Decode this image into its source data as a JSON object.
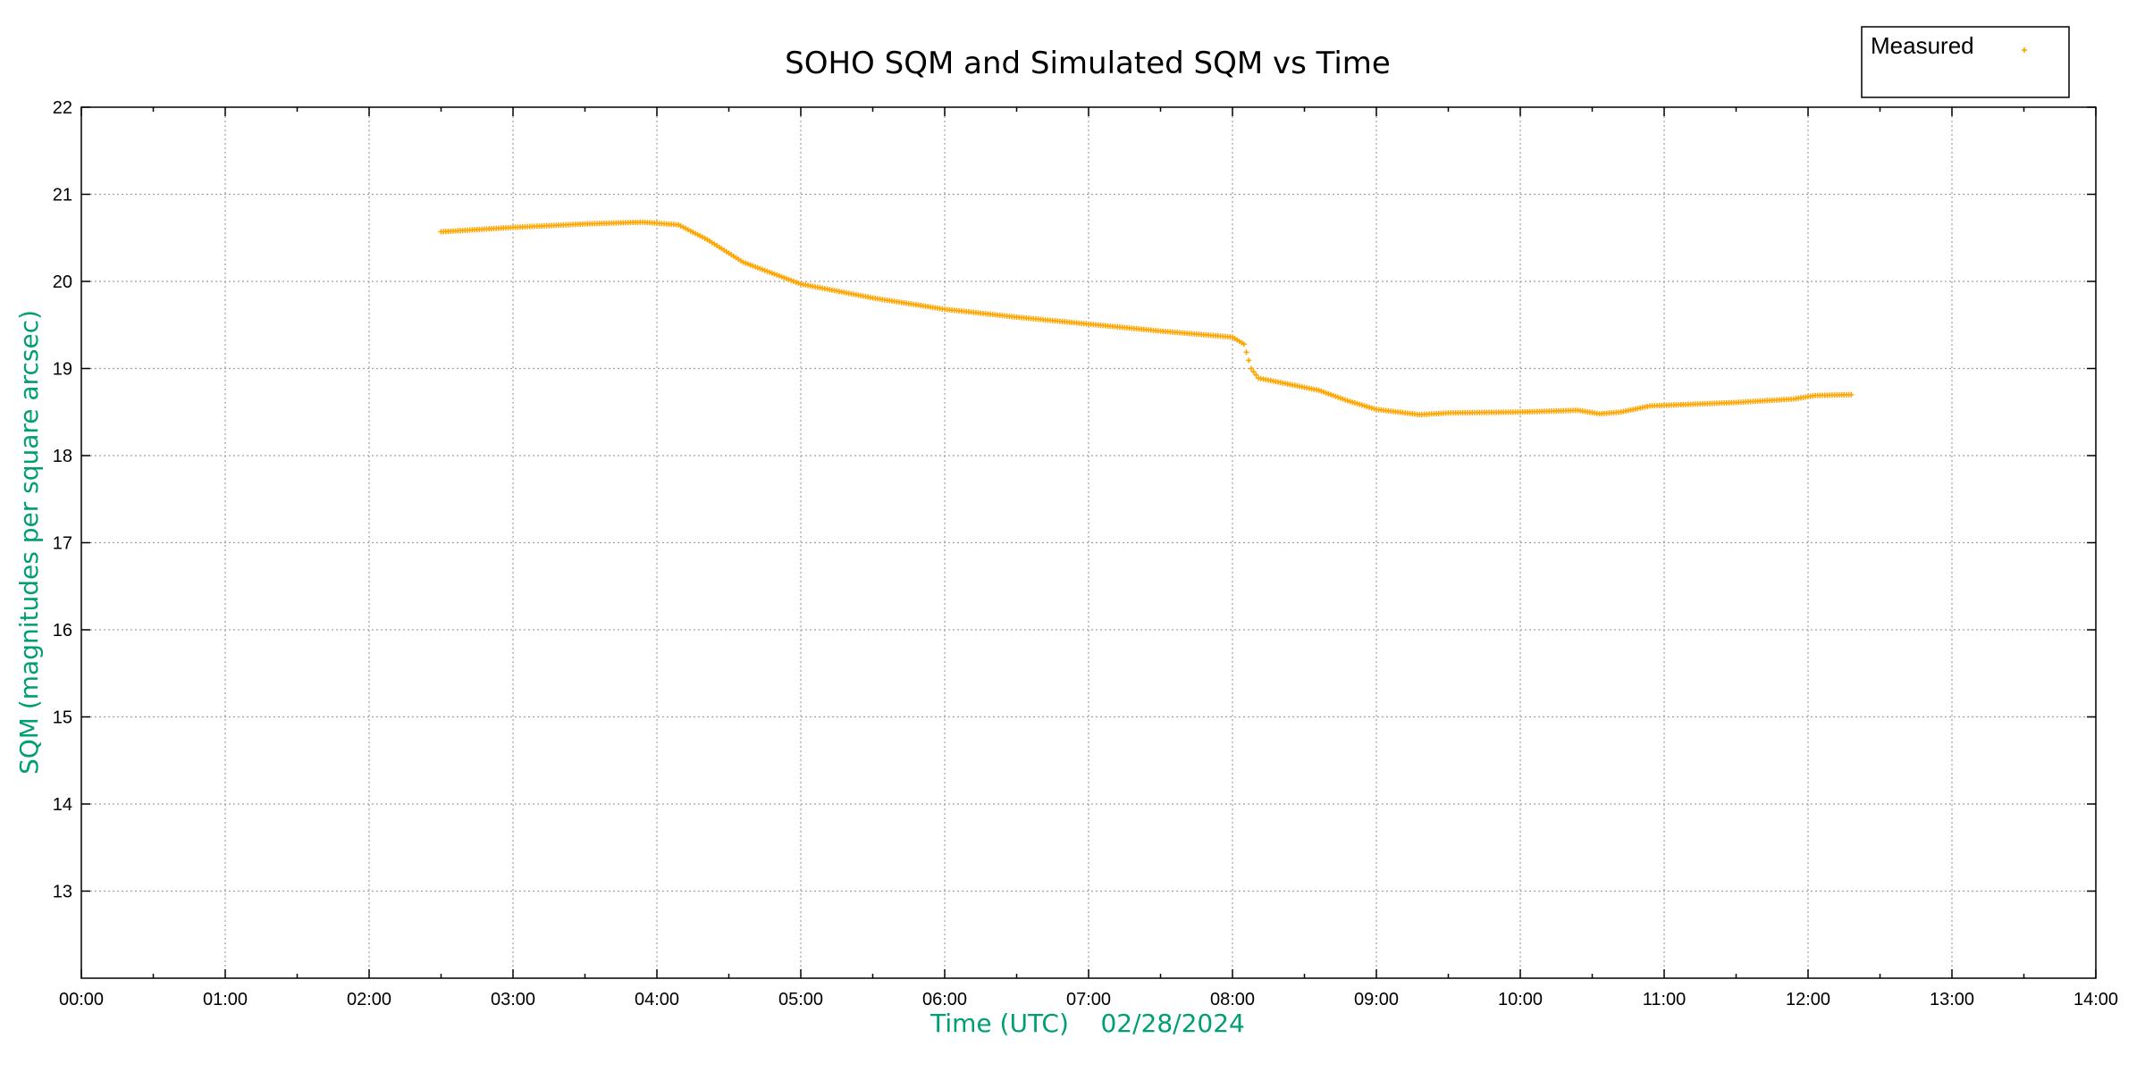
{
  "chart_data": {
    "type": "scatter",
    "title": "SOHO SQM and Simulated SQM vs Time",
    "xlabel": "Time (UTC)    02/28/2024",
    "ylabel": "SQM (magnitudes per square arcsec)",
    "xlim": [
      0,
      14
    ],
    "ylim": [
      12,
      22
    ],
    "x_ticks": [
      "00:00",
      "01:00",
      "02:00",
      "03:00",
      "04:00",
      "05:00",
      "06:00",
      "07:00",
      "08:00",
      "09:00",
      "10:00",
      "11:00",
      "12:00",
      "13:00",
      "14:00"
    ],
    "y_ticks": [
      "13",
      "14",
      "15",
      "16",
      "17",
      "18",
      "19",
      "20",
      "21",
      "22"
    ],
    "grid": true,
    "legend": {
      "placement": "top-right, outside plot",
      "entries": [
        {
          "label": "Measured",
          "color": "#ffa500",
          "marker": "+"
        }
      ]
    },
    "series": [
      {
        "name": "Measured",
        "color": "#ffa500",
        "marker": "+",
        "x_unit": "hours UTC",
        "points": [
          [
            2.5,
            20.57
          ],
          [
            3.0,
            20.62
          ],
          [
            3.5,
            20.66
          ],
          [
            3.9,
            20.68
          ],
          [
            4.15,
            20.65
          ],
          [
            4.35,
            20.48
          ],
          [
            4.6,
            20.22
          ],
          [
            5.0,
            19.97
          ],
          [
            5.5,
            19.81
          ],
          [
            6.0,
            19.68
          ],
          [
            6.5,
            19.59
          ],
          [
            7.0,
            19.51
          ],
          [
            7.5,
            19.43
          ],
          [
            8.0,
            19.36
          ],
          [
            8.08,
            19.28
          ],
          [
            8.13,
            19.0
          ],
          [
            8.18,
            18.89
          ],
          [
            8.3,
            18.85
          ],
          [
            8.6,
            18.75
          ],
          [
            8.8,
            18.63
          ],
          [
            9.0,
            18.53
          ],
          [
            9.3,
            18.47
          ],
          [
            9.5,
            18.49
          ],
          [
            10.0,
            18.5
          ],
          [
            10.4,
            18.52
          ],
          [
            10.55,
            18.48
          ],
          [
            10.7,
            18.5
          ],
          [
            10.9,
            18.57
          ],
          [
            11.5,
            18.61
          ],
          [
            11.9,
            18.65
          ],
          [
            12.05,
            18.69
          ],
          [
            12.3,
            18.7
          ]
        ]
      }
    ]
  }
}
